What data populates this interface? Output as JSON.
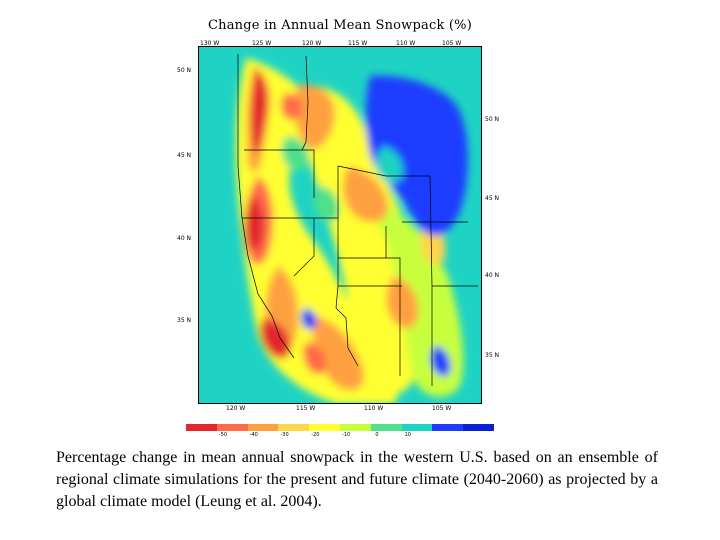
{
  "title": "Change in Annual Mean Snowpack (%)",
  "top_ticks": [
    "130 W",
    "125 W",
    "120 W",
    "115 W",
    "110 W",
    "105 W"
  ],
  "bottom_ticks": [
    "120 W",
    "115 W",
    "110 W",
    "105 W"
  ],
  "left_ticks": [
    "50 N",
    "45 N",
    "40 N",
    "35 N"
  ],
  "right_ticks": [
    "50 N",
    "45 N",
    "40 N",
    "35 N"
  ],
  "legend": {
    "colors": [
      "#e3262d",
      "#ff6a4a",
      "#ffa040",
      "#ffd54a",
      "#ffff33",
      "#c8ff3c",
      "#4fe08a",
      "#1fd3c4",
      "#1e3cff",
      "#0a1fd6"
    ],
    "labels": [
      "-50",
      "-40",
      "-30",
      "-20",
      "-10",
      "0",
      "10"
    ]
  },
  "caption": "Percentage change in mean annual snowpack in the western U.S. based on an ensemble of regional climate simulations for the present and future climate (2040-2060) as projected by a global climate model (Leung et al. 2004)."
}
